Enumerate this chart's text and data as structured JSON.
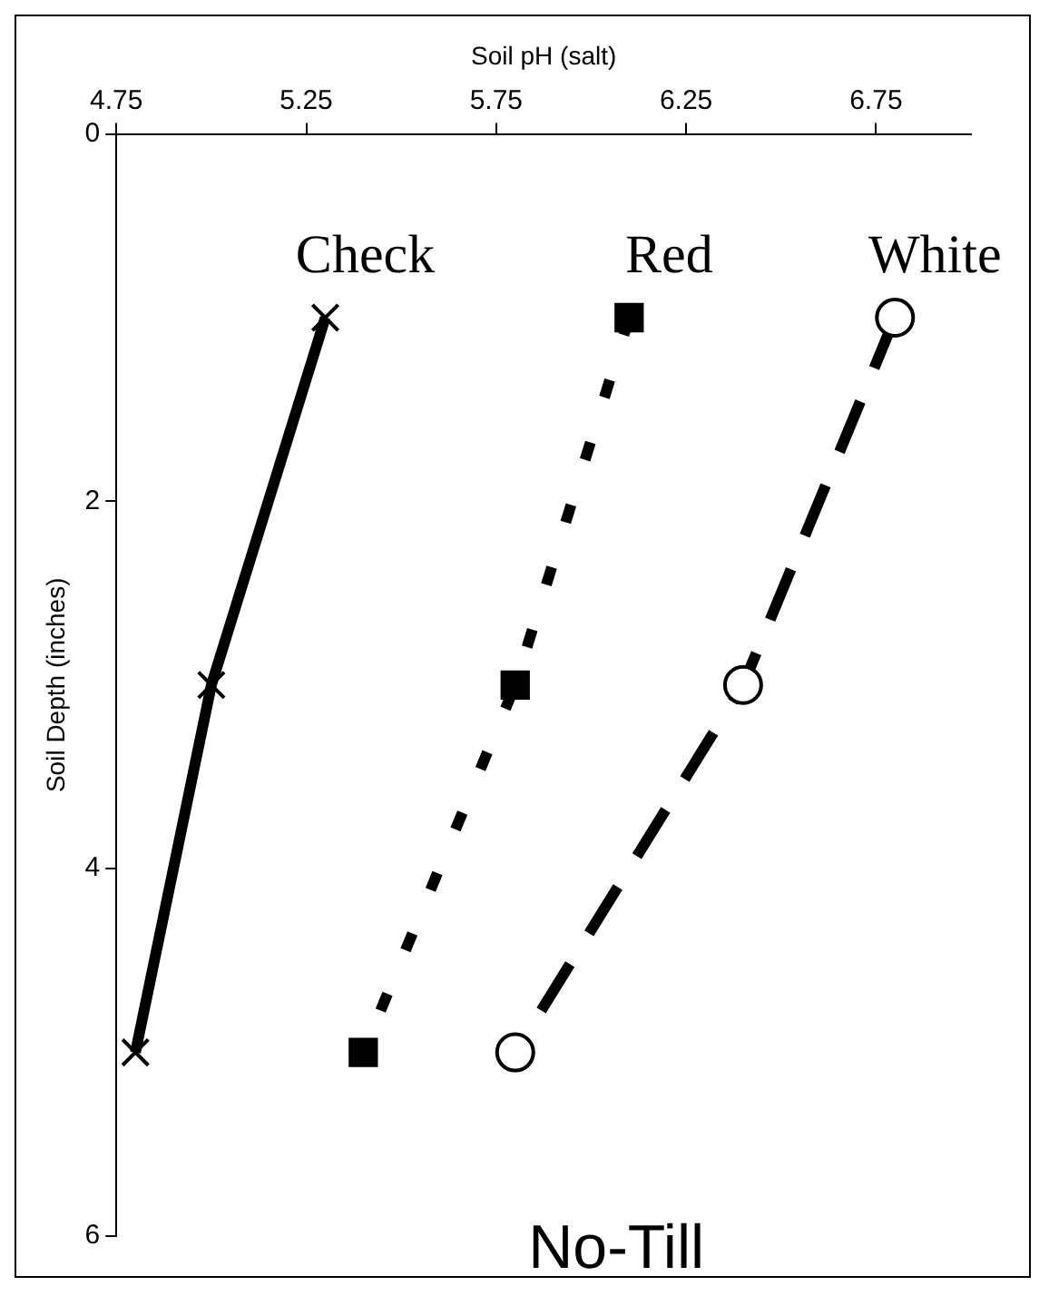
{
  "chart_data": {
    "type": "line",
    "xlabel": "Soil pH (salt)",
    "ylabel": "Soil Depth (inches)",
    "xlim": [
      4.75,
      7.0
    ],
    "xticks": [
      4.75,
      5.25,
      5.75,
      6.25,
      6.75
    ],
    "ylim": [
      6,
      0
    ],
    "yticks": [
      0,
      2,
      4,
      6
    ],
    "legend": false,
    "series": [
      {
        "name": "Check",
        "color": "#000000",
        "marker": "cross",
        "line_style": "solid",
        "x": [
          5.3,
          5.0,
          4.8
        ],
        "values": [
          1,
          3,
          5
        ]
      },
      {
        "name": "Red",
        "color": "#000000",
        "marker": "square",
        "line_style": "dotted",
        "x": [
          6.1,
          5.8,
          5.4
        ],
        "values": [
          1,
          3,
          5
        ]
      },
      {
        "name": "White",
        "color": "#000000",
        "marker": "circle",
        "line_style": "dashed",
        "x": [
          6.8,
          6.4,
          5.8
        ],
        "values": [
          1,
          3,
          5
        ]
      }
    ],
    "annotations": [
      "No-Till"
    ]
  }
}
